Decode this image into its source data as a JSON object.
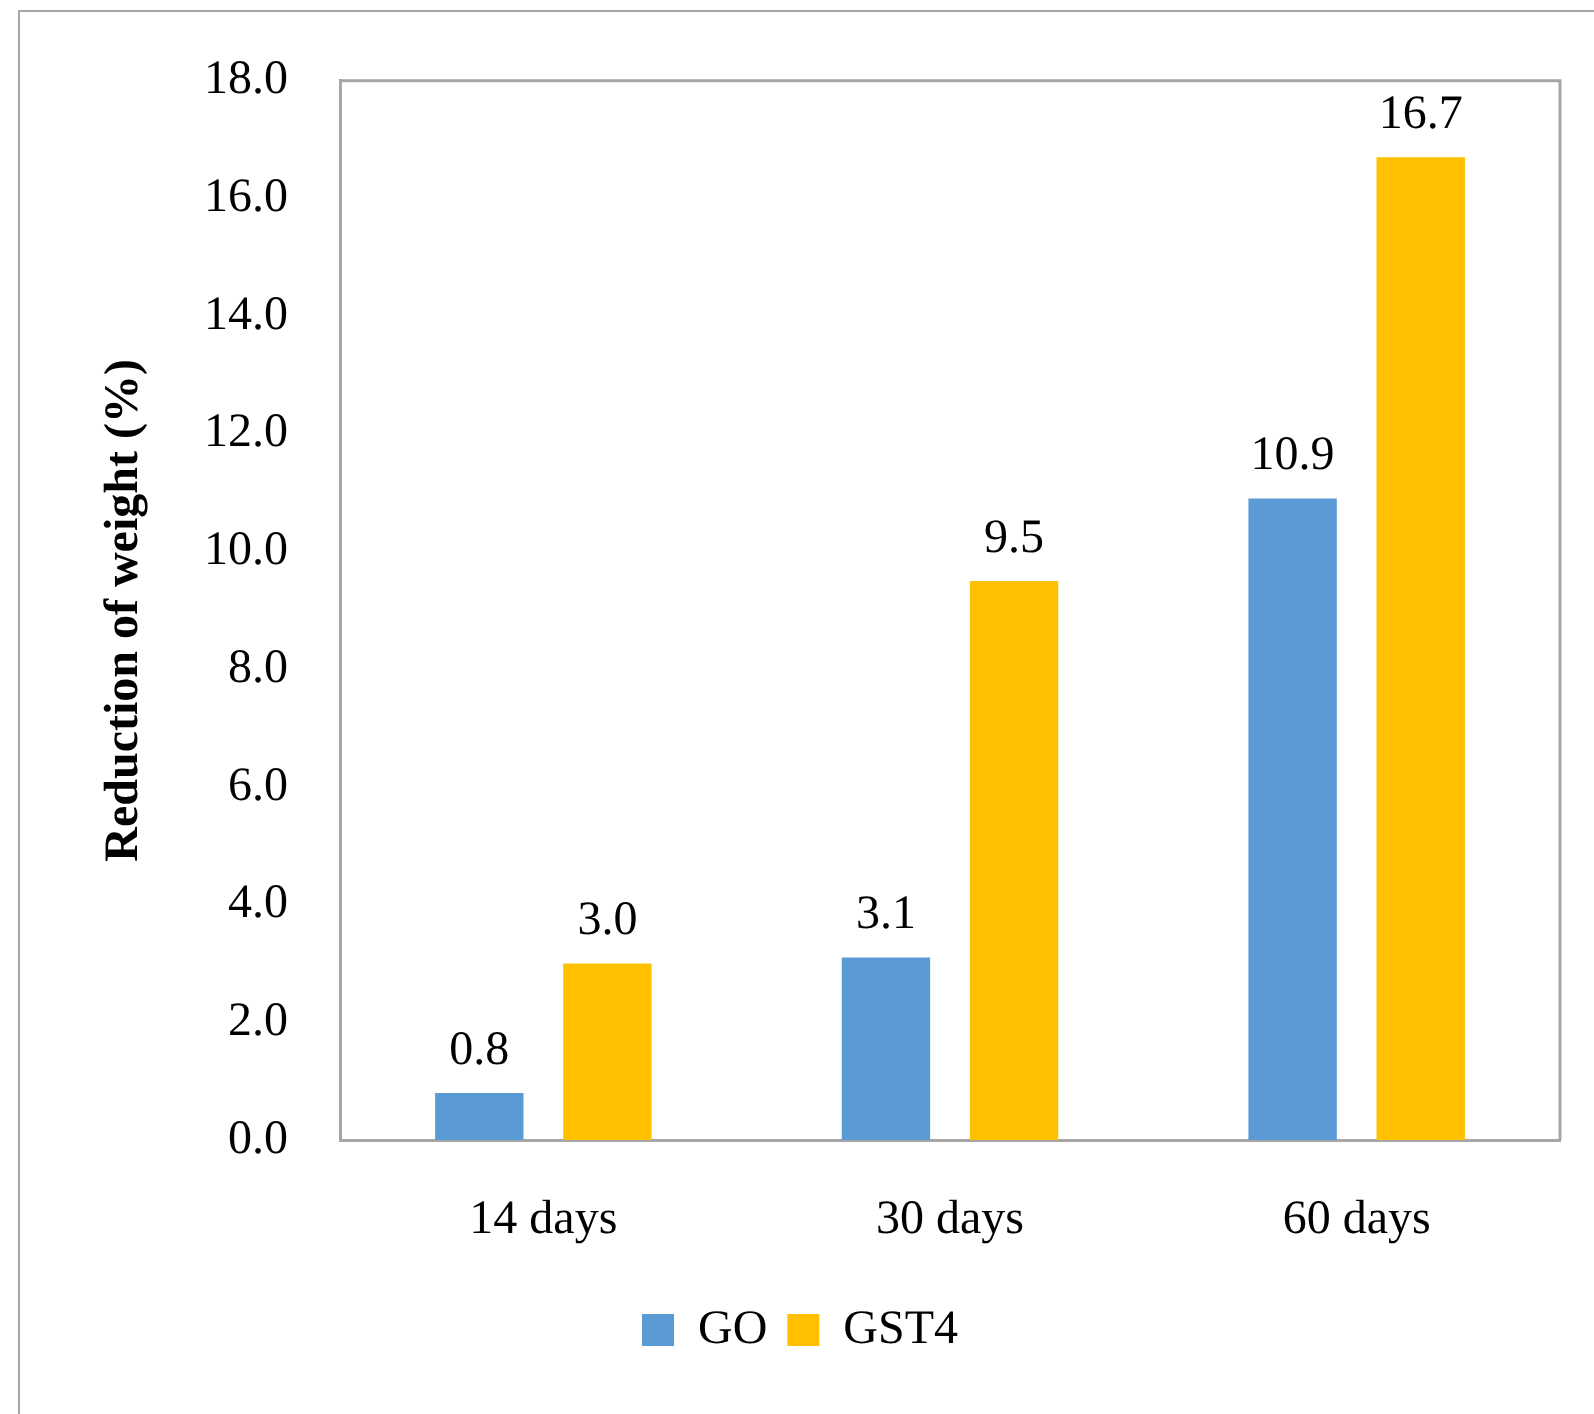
{
  "chart_data": {
    "type": "bar",
    "ylabel": "Reduction of weight (%)",
    "categories": [
      "14 days",
      "30 days",
      "60 days"
    ],
    "series": [
      {
        "name": "GO",
        "color": "#5b9bd5",
        "values": [
          0.8,
          3.1,
          10.9
        ],
        "value_labels": [
          "0.8",
          "3.1",
          "10.9"
        ]
      },
      {
        "name": "GST4",
        "color": "#ffc000",
        "values": [
          3.0,
          9.5,
          16.7
        ],
        "value_labels": [
          "3.0",
          "9.5",
          "16.7"
        ]
      }
    ],
    "ylim": [
      0,
      18
    ],
    "yticks": [
      {
        "value": 0,
        "label": "0.0"
      },
      {
        "value": 2,
        "label": "2.0"
      },
      {
        "value": 4,
        "label": "4.0"
      },
      {
        "value": 6,
        "label": "6.0"
      },
      {
        "value": 8,
        "label": "8.0"
      },
      {
        "value": 10,
        "label": "10.0"
      },
      {
        "value": 12,
        "label": "12.0"
      },
      {
        "value": 14,
        "label": "14.0"
      },
      {
        "value": 16,
        "label": "16.0"
      },
      {
        "value": 18,
        "label": "18.0"
      }
    ],
    "grid": false,
    "legend": "bottom"
  }
}
